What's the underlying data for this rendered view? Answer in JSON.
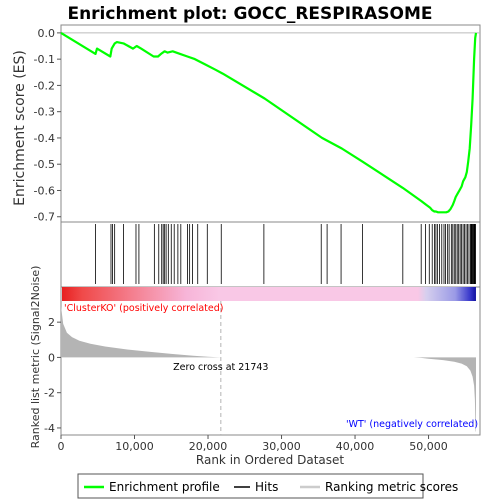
{
  "chart_data": {
    "type": "line",
    "title": "Enrichment plot: GOCC_RESPIRASOME",
    "es_panel": {
      "ylabel": "Enrichment score (ES)",
      "ylim": [
        -0.72,
        0.03
      ],
      "yticks": [
        0.0,
        -0.1,
        -0.2,
        -0.3,
        -0.4,
        -0.5,
        -0.6,
        -0.7
      ],
      "ytick_labels": [
        "0.0",
        "-0.1",
        "-0.2",
        "-0.3",
        "-0.4",
        "-0.5",
        "-0.6",
        "-0.7"
      ],
      "line_color": "#00ff00",
      "series": [
        {
          "x": [
            0,
            4700,
            4900,
            6700,
            6900,
            7300,
            7600,
            8500,
            9800,
            10300,
            10900,
            12600,
            13200,
            13600,
            14100,
            14500,
            15200,
            16200,
            17200,
            18200,
            19600,
            21000,
            22000,
            27700,
            35500,
            36200,
            38200,
            41000,
            46500,
            49000,
            49700,
            50200,
            50500,
            50800,
            51000,
            51300,
            51600,
            51900,
            52200,
            52400,
            52700,
            53000,
            53300,
            53500,
            53700,
            54000,
            54200,
            54500,
            54700,
            55000,
            55200,
            55400,
            55600,
            55800,
            56000,
            56200,
            56350,
            56450
          ],
          "y": [
            0.0,
            -0.08,
            -0.06,
            -0.09,
            -0.06,
            -0.04,
            -0.035,
            -0.04,
            -0.06,
            -0.05,
            -0.06,
            -0.09,
            -0.09,
            -0.08,
            -0.07,
            -0.075,
            -0.07,
            -0.08,
            -0.09,
            -0.1,
            -0.12,
            -0.14,
            -0.155,
            -0.25,
            -0.4,
            -0.41,
            -0.44,
            -0.49,
            -0.59,
            -0.64,
            -0.655,
            -0.665,
            -0.675,
            -0.68,
            -0.68,
            -0.683,
            -0.683,
            -0.683,
            -0.683,
            -0.683,
            -0.68,
            -0.67,
            -0.655,
            -0.64,
            -0.625,
            -0.61,
            -0.6,
            -0.585,
            -0.565,
            -0.55,
            -0.53,
            -0.49,
            -0.44,
            -0.35,
            -0.25,
            -0.1,
            -0.02,
            0.0
          ]
        }
      ]
    },
    "hits_panel": {
      "hit_positions": [
        4700,
        6800,
        7000,
        7300,
        8500,
        10200,
        10600,
        12700,
        13300,
        13700,
        13900,
        14100,
        14300,
        14600,
        15000,
        15400,
        15900,
        16300,
        17200,
        17500,
        17900,
        18600,
        19900,
        21800,
        27600,
        35400,
        36200,
        38100,
        41000,
        46500,
        49000,
        49600,
        50100,
        50500,
        50800,
        51000,
        51200,
        51500,
        51800,
        52100,
        52300,
        52600,
        52800,
        53100,
        53300,
        53500,
        53700,
        53900,
        54100,
        54300,
        54500,
        54700,
        54900,
        55100,
        55300,
        55500,
        55700,
        55800,
        55900,
        56000,
        56100,
        56200,
        56300,
        56400
      ]
    },
    "metric_panel": {
      "ylabel": "Ranked list metric (Signal2Noise)",
      "ylim": [
        -4.4,
        3.2
      ],
      "yticks": [
        2,
        0,
        -2,
        -4
      ],
      "ytick_labels": [
        "2",
        "0",
        "-2",
        "-4"
      ],
      "fill_color": "#b4b4b4",
      "x": [
        0,
        300,
        800,
        1500,
        2500,
        4000,
        6000,
        9000,
        12000,
        15000,
        18000,
        20000,
        21743,
        30000,
        48000,
        49000,
        50000,
        52000,
        53500,
        54500,
        55200,
        55700,
        56000,
        56200,
        56300,
        56400,
        56450
      ],
      "y": [
        2.9,
        1.9,
        1.4,
        1.15,
        0.95,
        0.78,
        0.62,
        0.45,
        0.32,
        0.2,
        0.1,
        0.04,
        0.0,
        0.0,
        0.0,
        -0.03,
        -0.08,
        -0.15,
        -0.25,
        -0.35,
        -0.5,
        -0.75,
        -1.1,
        -1.6,
        -2.4,
        -4.2,
        -4.2
      ],
      "zero_cross_label": "Zero cross at 21743",
      "zero_cross": 21743,
      "pos_label": "'ClusterKO' (positively correlated)",
      "neg_label": "'WT' (negatively correlated)"
    },
    "x_axis": {
      "label": "Rank in Ordered Dataset",
      "xlim": [
        0,
        57000
      ],
      "ticks": [
        0,
        10000,
        20000,
        30000,
        40000,
        50000
      ],
      "tick_labels": [
        "0",
        "10,000",
        "20,000",
        "30,000",
        "40,000",
        "50,000"
      ]
    },
    "legend": {
      "placement": "bottom",
      "entries": [
        {
          "label": "Enrichment profile",
          "color": "#00ff00",
          "style": "line"
        },
        {
          "label": "Hits",
          "color": "#000000",
          "style": "tick"
        },
        {
          "label": "Ranking metric scores",
          "color": "#cccccc",
          "style": "line"
        }
      ]
    },
    "colors": {
      "pos_label": "#ff0000",
      "neg_label": "#0000ff",
      "zero_cross_line": "#b4b4b4",
      "hits": "#000000"
    }
  }
}
